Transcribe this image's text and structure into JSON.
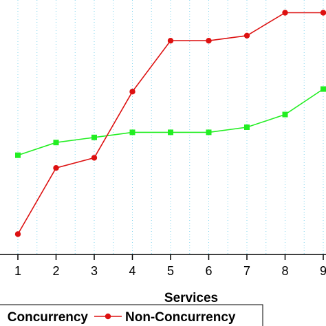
{
  "chart_data": {
    "type": "line",
    "xlabel": "Services",
    "ylabel": "",
    "x": [
      1,
      2,
      3,
      4,
      5,
      6,
      7,
      8,
      9
    ],
    "xticks": [
      "1",
      "2",
      "3",
      "4",
      "5",
      "6",
      "7",
      "8",
      "9"
    ],
    "ylim": [
      0,
      100
    ],
    "grid": "vertical dotted",
    "legend": "bottom",
    "series": [
      {
        "name": "Concurrency",
        "legend_label": "Concurrency",
        "color": "#22ee22",
        "marker": "square",
        "values": [
          39,
          44,
          46,
          48,
          48,
          48,
          50,
          55,
          65
        ]
      },
      {
        "name": "Non-Concurrency",
        "legend_label": "Non-Concurrency",
        "color": "#dd1111",
        "marker": "circle",
        "values": [
          8,
          34,
          38,
          64,
          84,
          84,
          86,
          95,
          95
        ]
      }
    ]
  }
}
